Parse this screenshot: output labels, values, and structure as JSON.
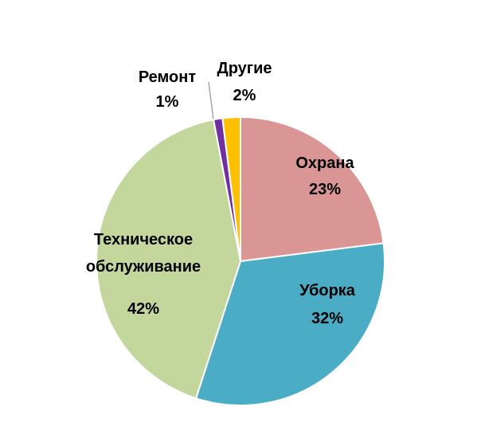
{
  "chart_data": {
    "type": "pie",
    "categories": [
      "Охрана",
      "Уборка",
      "Техническое обслуживание",
      "Ремонт",
      "Другие"
    ],
    "values": [
      23,
      32,
      42,
      1,
      2
    ],
    "value_labels": [
      "23%",
      "32%",
      "42%",
      "1%",
      "2%"
    ],
    "colors": [
      "#d99694",
      "#4bacc6",
      "#c3d69b",
      "#7030a0",
      "#ffc000"
    ]
  }
}
